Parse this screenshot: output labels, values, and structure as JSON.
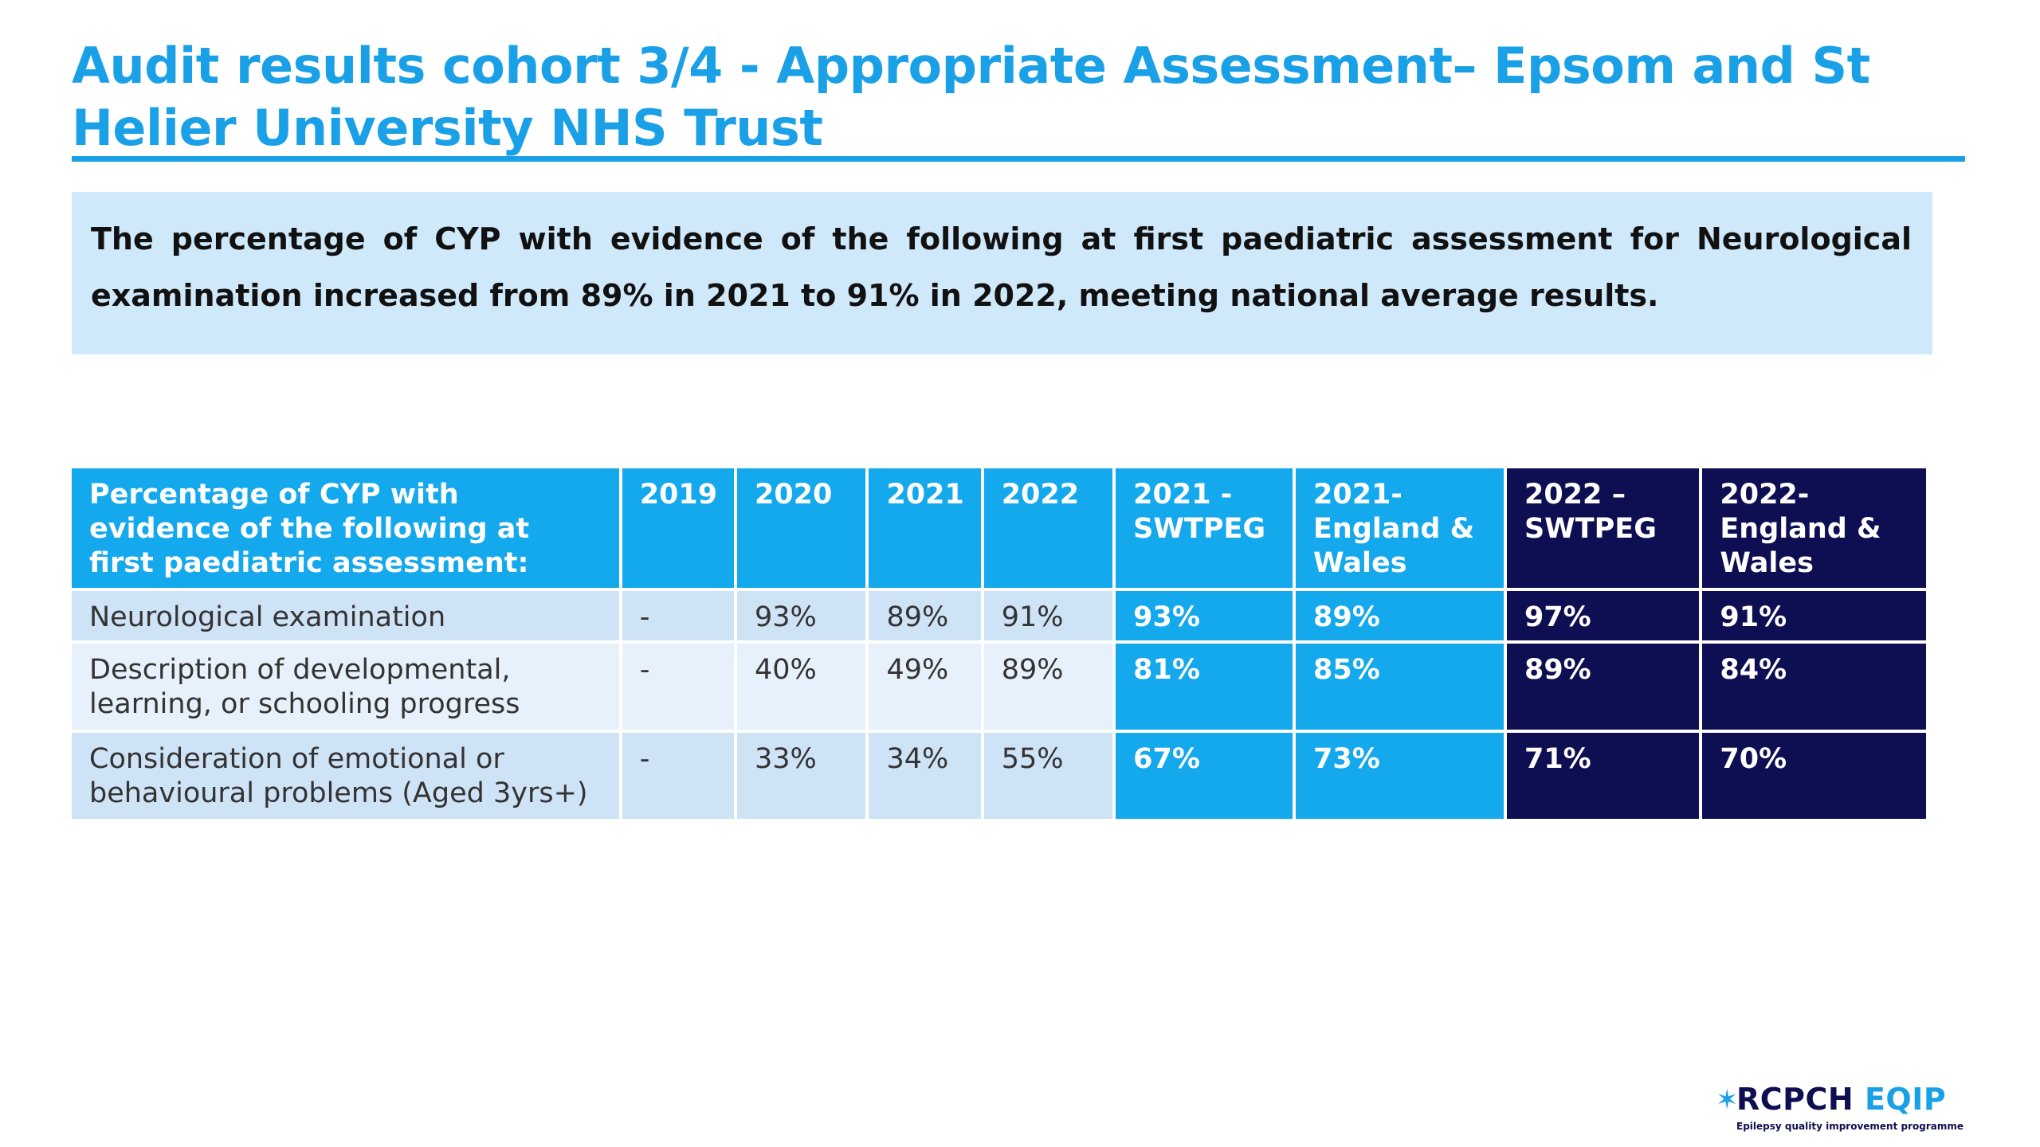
{
  "title": "Audit results cohort 3/4 - Appropriate Assessment– Epsom and St Helier University NHS Trust",
  "summary": "The percentage of CYP with evidence of the following at first paediatric assessment for Neurological examination increased from 89% in 2021 to 91% in 2022, meeting national average results.",
  "table": {
    "headers": [
      "Percentage of CYP with evidence of the following at first paediatric assessment:",
      "2019",
      "2020",
      "2021",
      "2022",
      "2021 - SWTPEG",
      "2021- England & Wales",
      "2022 – SWTPEG",
      "2022- England & Wales"
    ],
    "rows": [
      {
        "label": "Neurological examination",
        "values": [
          "-",
          "93%",
          "89%",
          "91%",
          "93%",
          "89%",
          "97%",
          "91%"
        ]
      },
      {
        "label": "Description of developmental, learning, or schooling progress",
        "values": [
          "-",
          "40%",
          "49%",
          "89%",
          "81%",
          "85%",
          "89%",
          "84%"
        ]
      },
      {
        "label": "Consideration of emotional or behavioural problems (Aged 3yrs+)",
        "values": [
          "-",
          "33%",
          "34%",
          "55%",
          "67%",
          "73%",
          "71%",
          "70%"
        ]
      }
    ]
  },
  "logo": {
    "mark": "✶",
    "brand": "RCPCH",
    "product": "EQIP",
    "tagline": "Epilepsy quality improvement programme"
  },
  "colors": {
    "accent": "#1aa0e6",
    "header_light": "#14a8ec",
    "header_dark": "#0e0e52",
    "summary_bg": "#cfe9fb"
  }
}
